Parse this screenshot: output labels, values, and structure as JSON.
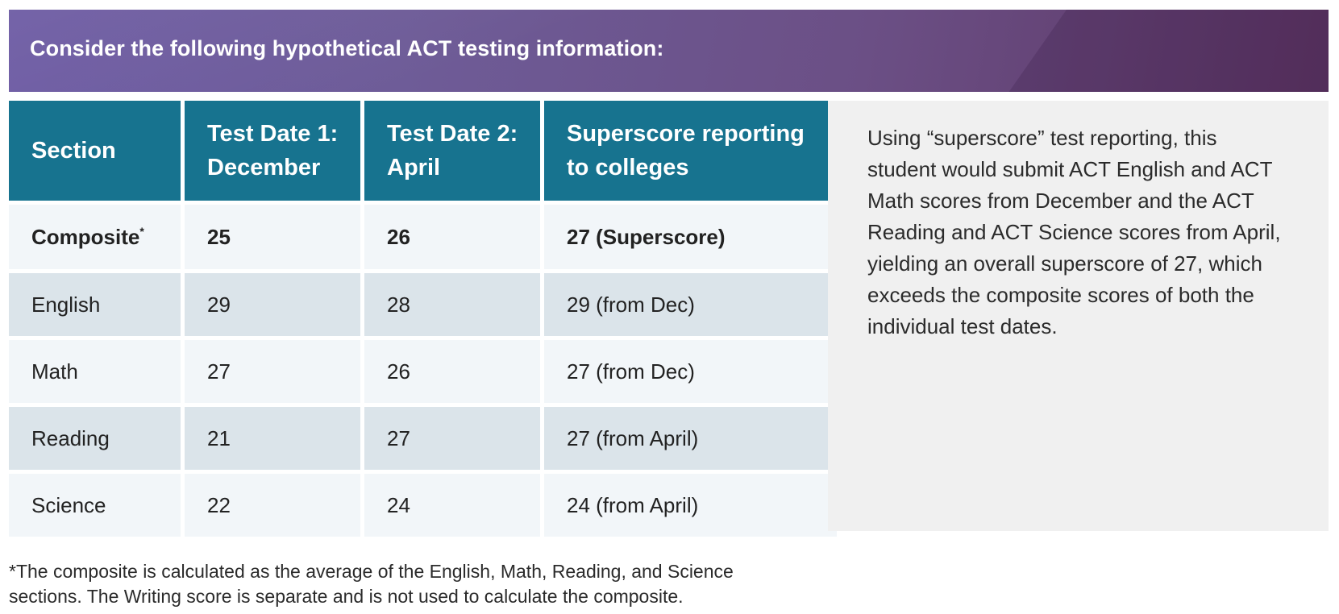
{
  "banner": {
    "title": "Consider the following hypothetical ACT testing information:"
  },
  "table": {
    "headers": {
      "section_line1": "Section",
      "date1_line1": "Test Date 1:",
      "date1_line2": "December",
      "date2_line1": "Test Date 2:",
      "date2_line2": "April",
      "super_line1": "Superscore reporting",
      "super_line2": "to colleges"
    },
    "rows": [
      {
        "section": "Composite",
        "marker": "*",
        "date1": "25",
        "date2": "26",
        "super": "27 (Superscore)"
      },
      {
        "section": "English",
        "date1": "29",
        "date2": "28",
        "super": "29 (from Dec)"
      },
      {
        "section": "Math",
        "date1": "27",
        "date2": "26",
        "super": "27 (from Dec)"
      },
      {
        "section": "Reading",
        "date1": "21",
        "date2": "27",
        "super": "27 (from April)"
      },
      {
        "section": "Science",
        "date1": "22",
        "date2": "24",
        "super": "24 (from April)"
      }
    ]
  },
  "note": {
    "text": "Using “superscore” test reporting, this student would submit ACT English and ACT Math scores from December and the ACT Reading and ACT Science scores from April, yielding an overall superscore of 27, which exceeds the composite scores of both the individual test dates."
  },
  "footnote": {
    "marker": "*",
    "line1": "The composite is calculated as the average of the English, Math, Reading, and Science",
    "line2": "sections. The Writing score is separate and is not used to calculate the composite."
  },
  "colors": {
    "header_teal": "#17738f",
    "banner_purple": "#6c5aa3",
    "row_light": "#f2f6f9",
    "row_dark": "#dbe4ea",
    "note_bg": "#f0f0f0"
  }
}
